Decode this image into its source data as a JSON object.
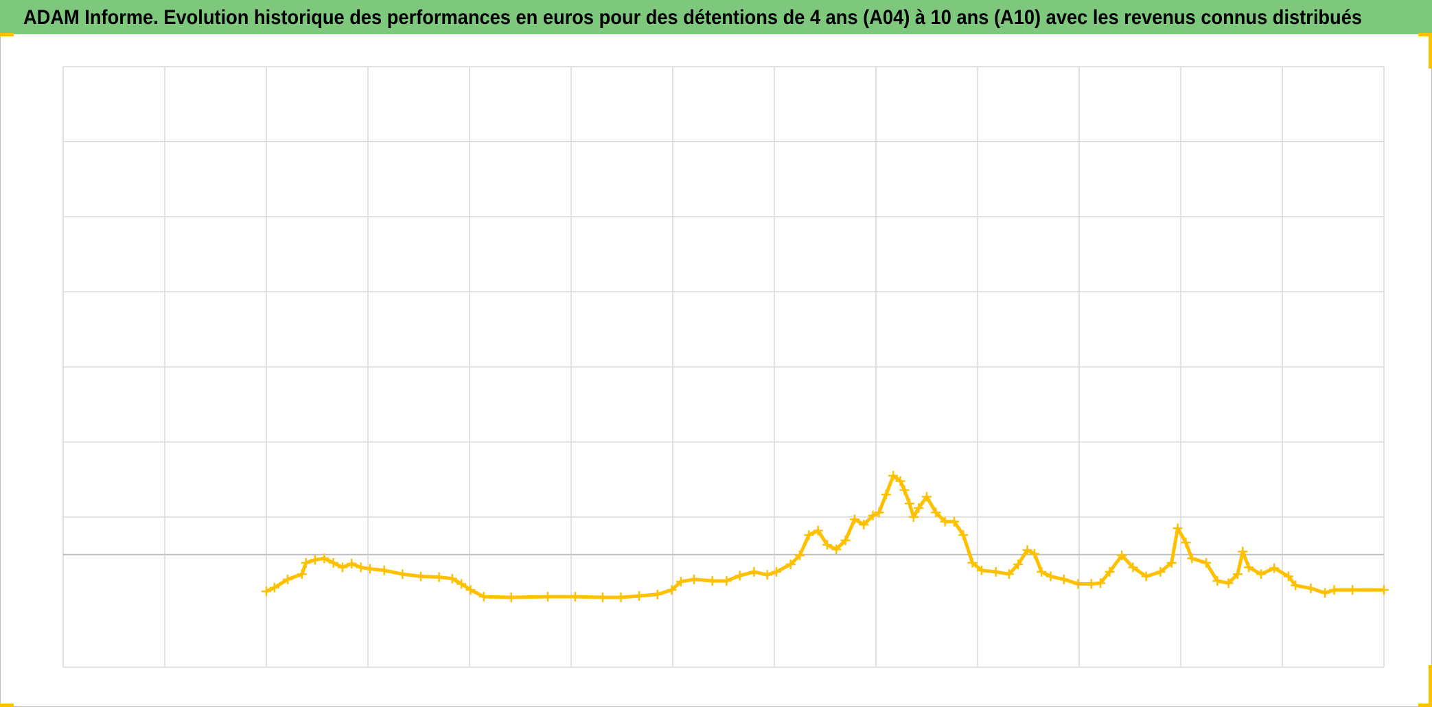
{
  "chart_data": {
    "type": "scatter",
    "title": "ADAM Informe. Evolution historique des performances en euros pour des détentions de 4 ans (A04) à 10 ans (A10) avec les revenus connus distribués",
    "xlim": [
      0,
      13
    ],
    "xticks": [
      0,
      1,
      2,
      3,
      4,
      5,
      6,
      7,
      8,
      9,
      10,
      11,
      12,
      13
    ],
    "ylim": [
      -1.5,
      6.5
    ],
    "yticks": [
      0.5,
      1.5,
      2.5,
      3.5,
      4.5,
      5.5,
      6.5
    ],
    "grid": true,
    "color": "#ffc000",
    "x": [
      2.0,
      2.08,
      2.21,
      2.35,
      2.39,
      2.48,
      2.57,
      2.66,
      2.75,
      2.84,
      2.93,
      3.02,
      3.16,
      3.34,
      3.52,
      3.7,
      3.83,
      3.92,
      4.01,
      4.14,
      4.41,
      4.77,
      5.04,
      5.31,
      5.49,
      5.67,
      5.85,
      5.99,
      6.08,
      6.21,
      6.39,
      6.53,
      6.66,
      6.8,
      6.93,
      7.02,
      7.16,
      7.25,
      7.34,
      7.43,
      7.52,
      7.61,
      7.7,
      7.79,
      7.88,
      7.97,
      8.03,
      8.1,
      8.17,
      8.24,
      8.28,
      8.33,
      8.37,
      8.42,
      8.5,
      8.59,
      8.68,
      8.77,
      8.86,
      8.95,
      9.04,
      9.18,
      9.31,
      9.4,
      9.49,
      9.56,
      9.63,
      9.72,
      9.85,
      9.99,
      10.12,
      10.21,
      10.3,
      10.42,
      10.53,
      10.66,
      10.8,
      10.91,
      10.97,
      11.05,
      11.11,
      11.25,
      11.36,
      11.47,
      11.56,
      11.61,
      11.67,
      11.79,
      11.92,
      12.06,
      12.13,
      12.28,
      12.42,
      12.51,
      12.69,
      13.0
    ],
    "values": [
      -0.49,
      -0.44,
      -0.33,
      -0.26,
      -0.11,
      -0.07,
      -0.05,
      -0.11,
      -0.17,
      -0.12,
      -0.17,
      -0.19,
      -0.21,
      -0.26,
      -0.29,
      -0.3,
      -0.32,
      -0.39,
      -0.47,
      -0.56,
      -0.57,
      -0.56,
      -0.56,
      -0.57,
      -0.57,
      -0.55,
      -0.53,
      -0.47,
      -0.36,
      -0.33,
      -0.35,
      -0.35,
      -0.28,
      -0.23,
      -0.27,
      -0.23,
      -0.13,
      -0.01,
      0.26,
      0.32,
      0.13,
      0.07,
      0.19,
      0.47,
      0.4,
      0.52,
      0.56,
      0.8,
      1.05,
      0.98,
      0.86,
      0.68,
      0.5,
      0.62,
      0.77,
      0.56,
      0.44,
      0.44,
      0.26,
      -0.11,
      -0.21,
      -0.23,
      -0.26,
      -0.13,
      0.06,
      0.01,
      -0.23,
      -0.29,
      -0.33,
      -0.39,
      -0.39,
      -0.38,
      -0.23,
      -0.01,
      -0.17,
      -0.29,
      -0.23,
      -0.11,
      0.35,
      0.16,
      -0.05,
      -0.11,
      -0.35,
      -0.38,
      -0.26,
      0.04,
      -0.17,
      -0.26,
      -0.18,
      -0.29,
      -0.41,
      -0.45,
      -0.51,
      -0.47,
      -0.47,
      -0.47
    ]
  }
}
